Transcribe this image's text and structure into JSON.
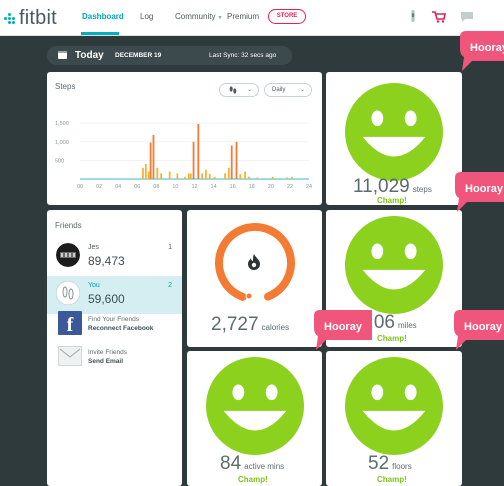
{
  "nav": {
    "logo": "fitbit",
    "links": [
      {
        "label": "Dashboard"
      },
      {
        "label": "Log"
      },
      {
        "label": "Community"
      },
      {
        "label": "Premium"
      }
    ],
    "store_label": "STORE"
  },
  "datebar": {
    "today": "Today",
    "date": "DECEMBER 19",
    "sync": "Last Sync: 32 secs ago"
  },
  "steps_chart": {
    "title": "Steps",
    "dropdown_period": "Daily"
  },
  "chart_data": {
    "type": "bar",
    "title": "Steps",
    "x_ticks": [
      "00",
      "02",
      "04",
      "06",
      "08",
      "10",
      "12",
      "14",
      "16",
      "18",
      "20",
      "22",
      "24"
    ],
    "y_ticks": [
      500,
      1000,
      1500
    ],
    "ylim": [
      0,
      1800
    ],
    "xlim": [
      0,
      24
    ],
    "series": [
      {
        "color": "#f47b34",
        "values": [
          [
            7.7,
            1180
          ],
          [
            7.4,
            980
          ],
          [
            11.9,
            1000
          ],
          [
            12.4,
            1480
          ],
          [
            15.9,
            900
          ],
          [
            16.4,
            1000
          ]
        ]
      },
      {
        "color": "#f9b233",
        "values": [
          [
            6.6,
            300
          ],
          [
            6.9,
            400
          ],
          [
            7.2,
            200
          ],
          [
            8.1,
            300
          ],
          [
            8.5,
            150
          ],
          [
            9.4,
            200
          ],
          [
            10.2,
            150
          ],
          [
            11.0,
            60
          ],
          [
            11.4,
            150
          ],
          [
            11.6,
            150
          ],
          [
            12.8,
            150
          ],
          [
            13.2,
            250
          ],
          [
            13.6,
            140
          ],
          [
            14.1,
            60
          ],
          [
            15.2,
            150
          ],
          [
            15.6,
            300
          ],
          [
            16.8,
            130
          ],
          [
            17.3,
            200
          ],
          [
            17.7,
            60
          ],
          [
            18.6,
            40
          ],
          [
            20.2,
            60
          ],
          [
            21.7,
            40
          ],
          [
            22.2,
            60
          ]
        ]
      }
    ]
  },
  "tiles": {
    "steps": {
      "value": "11,029",
      "unit": "steps",
      "status": "Champ!"
    },
    "calories": {
      "value": "2,727",
      "unit": "calories"
    },
    "distance": {
      "value": "6.06",
      "unit": "miles",
      "status": "Champ!"
    },
    "active": {
      "value": "84",
      "unit": "active mins",
      "status": "Champ!"
    },
    "floors": {
      "value": "52",
      "unit": "floors",
      "status": "Champ!"
    }
  },
  "friends": {
    "title": "Friends",
    "list": [
      {
        "name": "Jes",
        "steps": "89,473",
        "rank": "1"
      },
      {
        "name": "You",
        "steps": "59,600",
        "rank": "2"
      }
    ],
    "find_line1": "Find Your Friends",
    "find_line2": "Reconnect Facebook",
    "invite_line1": "Invite Friends",
    "invite_line2": "Send Email"
  },
  "hooray": {
    "label": "Hooray"
  },
  "colors": {
    "accent": "#00b0b9",
    "smiley": "#8cd11e",
    "champ": "#7dc418",
    "hooray": "#f0567c",
    "store": "#e2215a",
    "calorie_ring": "#f47b34"
  }
}
